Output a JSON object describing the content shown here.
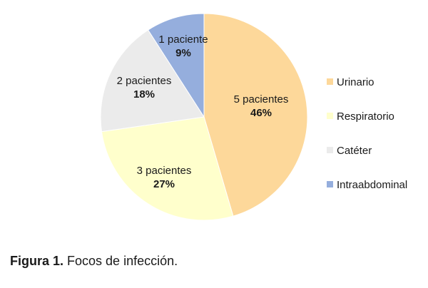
{
  "chart_data": {
    "type": "pie",
    "categories": [
      "Urinario",
      "Respiratorio",
      "Catéter",
      "Intraabdominal"
    ],
    "values": [
      5,
      3,
      2,
      1
    ],
    "data_labels": [
      {
        "count": "5 pacientes",
        "percent": "46%"
      },
      {
        "count": "3 pacientes",
        "percent": "27%"
      },
      {
        "count": "2 pacientes",
        "percent": "18%"
      },
      {
        "count": "1 paciente",
        "percent": "9%"
      }
    ],
    "colors": [
      "#fdd89a",
      "#ffffcc",
      "#ebebeb",
      "#95aedd"
    ],
    "start_angle_deg": 0,
    "direction": "clockwise",
    "legend": {
      "position": "right",
      "entries": [
        "Urinario",
        "Respiratorio",
        "Catéter",
        "Intraabdominal"
      ]
    }
  },
  "caption": {
    "label": "Figura 1.",
    "text": "Focos de infección."
  }
}
